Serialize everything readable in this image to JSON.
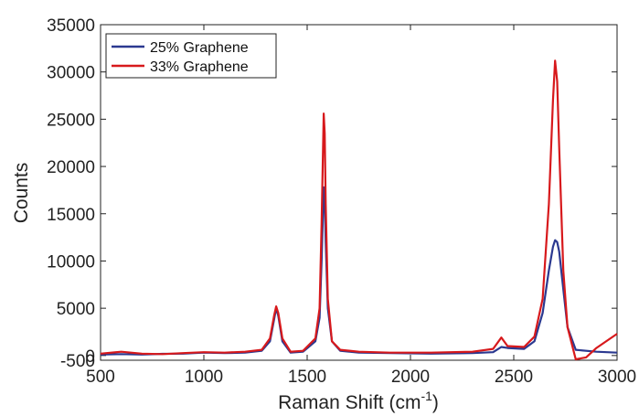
{
  "chart_data": {
    "type": "line",
    "title": "",
    "xlabel": "Raman Shift (cm",
    "xlabel_sup": "-1",
    "xlabel_end": ")",
    "ylabel": "Counts",
    "xlim": [
      500,
      3000
    ],
    "ylim": [
      -500,
      35000
    ],
    "xticks": [
      500,
      1000,
      1500,
      2000,
      2500,
      3000
    ],
    "yticks": [
      -500,
      0,
      5000,
      10000,
      15000,
      20000,
      25000,
      30000,
      35000
    ],
    "grid": false,
    "legend_position": "top-left",
    "series": [
      {
        "name": "25% Graphene",
        "color": "#2b3990",
        "x": [
          500,
          600,
          700,
          800,
          900,
          1000,
          1100,
          1200,
          1280,
          1320,
          1340,
          1350,
          1360,
          1380,
          1420,
          1480,
          1540,
          1560,
          1570,
          1580,
          1585,
          1590,
          1600,
          1620,
          1660,
          1750,
          1900,
          2100,
          2300,
          2400,
          2440,
          2470,
          2550,
          2600,
          2640,
          2670,
          2690,
          2700,
          2710,
          2720,
          2740,
          2760,
          2800,
          2900,
          3000
        ],
        "y": [
          100,
          150,
          100,
          180,
          200,
          300,
          250,
          300,
          500,
          1500,
          3800,
          5000,
          4200,
          1500,
          300,
          400,
          1500,
          4000,
          10000,
          17800,
          16500,
          12000,
          5000,
          1500,
          500,
          300,
          250,
          200,
          250,
          350,
          900,
          800,
          700,
          1500,
          4500,
          9000,
          11500,
          12200,
          12000,
          11000,
          7000,
          3000,
          600,
          400,
          300
        ]
      },
      {
        "name": "33% Graphene",
        "color": "#d7191c",
        "x": [
          500,
          600,
          700,
          800,
          900,
          1000,
          1100,
          1200,
          1280,
          1320,
          1340,
          1350,
          1360,
          1380,
          1420,
          1480,
          1540,
          1560,
          1570,
          1580,
          1585,
          1590,
          1600,
          1620,
          1660,
          1750,
          1900,
          2100,
          2300,
          2400,
          2440,
          2470,
          2550,
          2600,
          2640,
          2670,
          2690,
          2700,
          2710,
          2720,
          2740,
          2760,
          2800,
          2850,
          2900,
          3000
        ],
        "y": [
          200,
          400,
          200,
          150,
          250,
          350,
          300,
          400,
          600,
          1800,
          4200,
          5200,
          4500,
          1800,
          400,
          500,
          1800,
          5000,
          14000,
          25600,
          23500,
          16000,
          6000,
          1500,
          600,
          400,
          300,
          300,
          400,
          700,
          1900,
          1000,
          900,
          2000,
          6000,
          16000,
          27000,
          31200,
          29000,
          22000,
          9000,
          3000,
          -400,
          -200,
          800,
          2300
        ]
      }
    ]
  }
}
